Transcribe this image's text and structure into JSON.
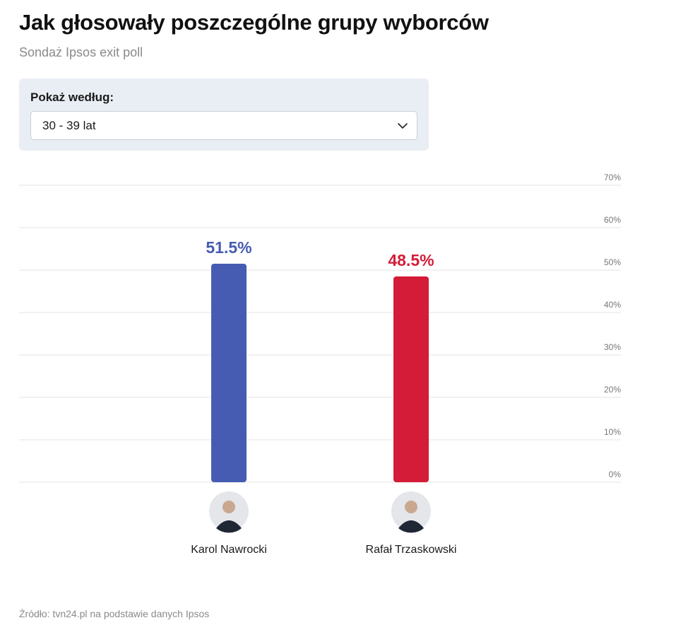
{
  "header": {
    "title": "Jak głosowały poszczególne grupy wyborców",
    "subtitle": "Sondaż Ipsos exit poll"
  },
  "filter": {
    "label": "Pokaż według:",
    "selected": "30 - 39 lat"
  },
  "chart_data": {
    "type": "bar",
    "categories": [
      "Karol Nawrocki",
      "Rafał Trzaskowski"
    ],
    "values": [
      51.5,
      48.5
    ],
    "value_labels": [
      "51.5%",
      "48.5%"
    ],
    "colors": [
      "#465cb2",
      "#d41c38"
    ],
    "ylim": [
      0,
      70
    ],
    "yticks": [
      "0%",
      "10%",
      "20%",
      "30%",
      "40%",
      "50%",
      "60%",
      "70%"
    ],
    "y_axis_position": "right",
    "grid": true,
    "avatars": [
      "person-photo-icon",
      "person-photo-icon"
    ]
  },
  "footer": {
    "source": "Źródło: tvn24.pl na podstawie danych Ipsos"
  }
}
